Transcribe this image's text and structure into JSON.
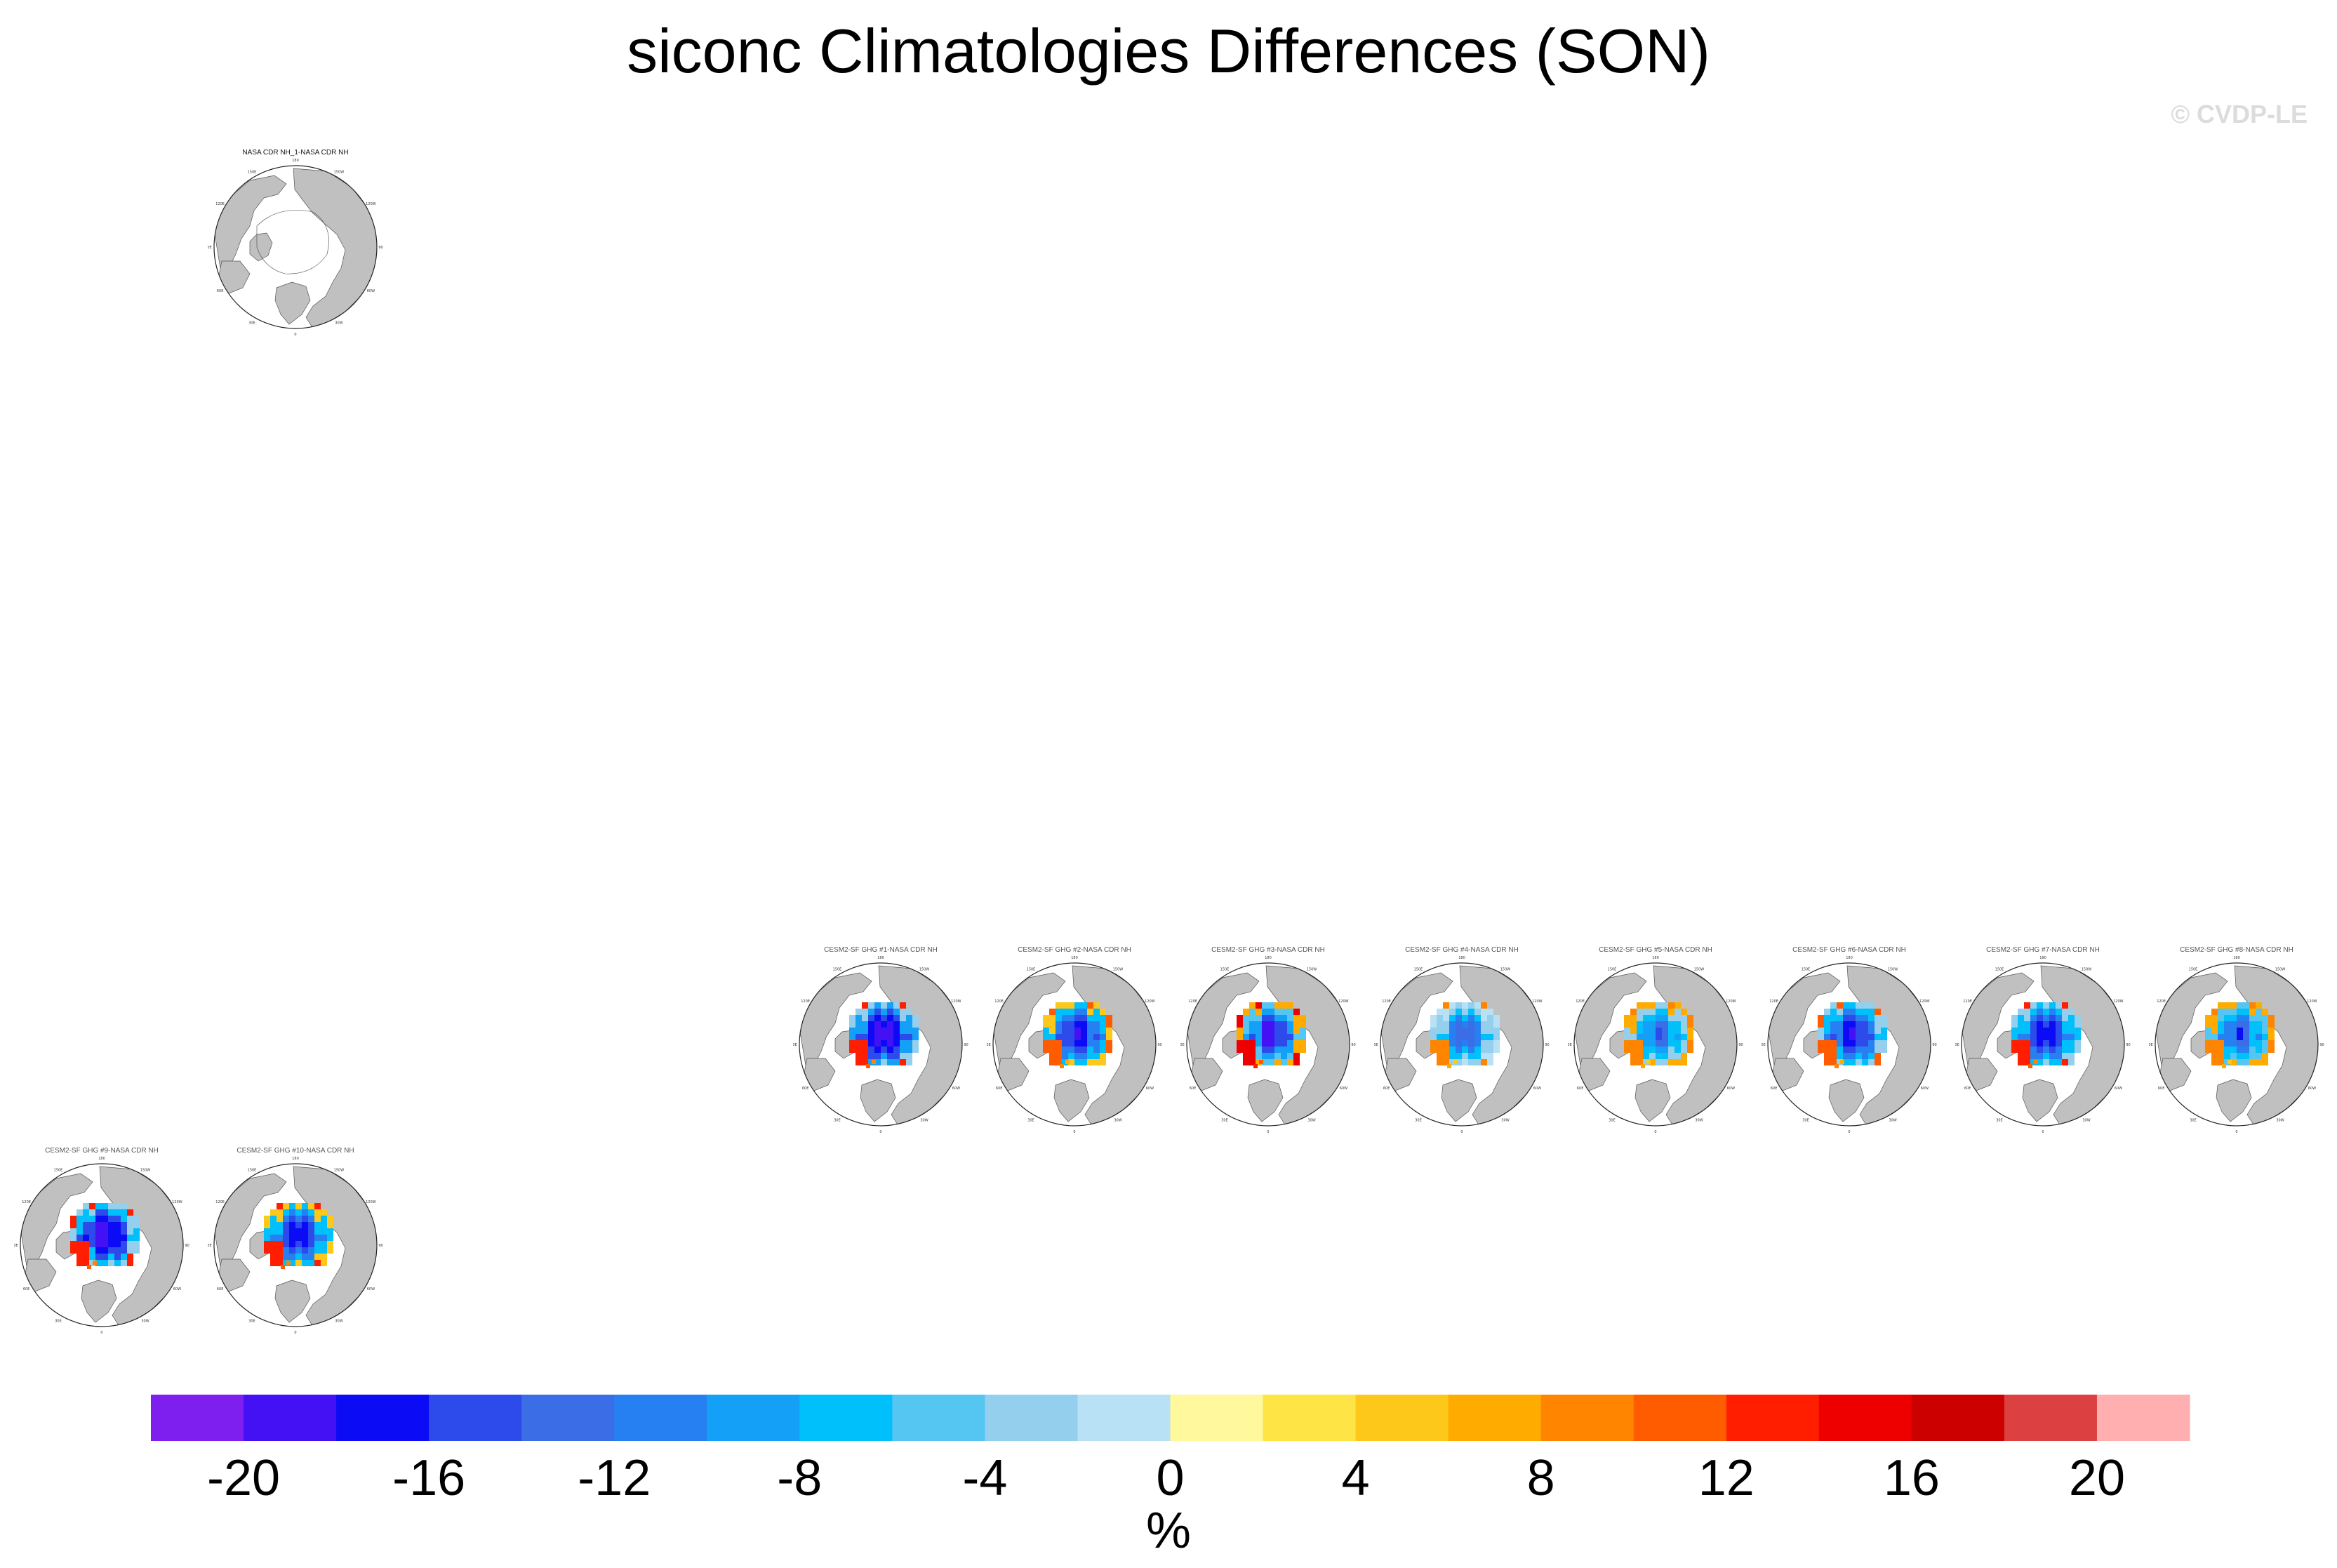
{
  "figure": {
    "title": "siconc Climatologies Differences (SON)",
    "watermark": "© CVDP-LE"
  },
  "chart_data": {
    "type": "heatmap",
    "title": "siconc Climatologies Differences (SON)",
    "map_projection": "north-polar-stereographic",
    "longitude_labels": [
      "180",
      "150E",
      "120E",
      "90E",
      "60E",
      "30E",
      "0",
      "30W",
      "60W",
      "90W",
      "120W",
      "150W"
    ],
    "land_color": "#c0c0c0",
    "ocean_color": "#ffffff",
    "panels": [
      {
        "title": "NASA CDR NH_1-NASA CDR NH",
        "kind": "observation",
        "anomaly": []
      },
      {
        "title": "CESM2-SF GHG #1-NASA CDR NH",
        "kind": "member",
        "anomaly": [
          -20,
          -20,
          -18,
          -16,
          -10,
          -4,
          12
        ]
      },
      {
        "title": "CESM2-SF GHG #2-NASA CDR NH",
        "kind": "member",
        "anomaly": [
          -20,
          -18,
          -16,
          -12,
          -8,
          4,
          10
        ]
      },
      {
        "title": "CESM2-SF GHG #3-NASA CDR NH",
        "kind": "member",
        "anomaly": [
          -20,
          -20,
          -16,
          -10,
          -6,
          6,
          14
        ]
      },
      {
        "title": "CESM2-SF GHG #4-NASA CDR NH",
        "kind": "member",
        "anomaly": [
          -18,
          -14,
          -12,
          -8,
          -4,
          -2,
          8
        ]
      },
      {
        "title": "CESM2-SF GHG #5-NASA CDR NH",
        "kind": "member",
        "anomaly": [
          -16,
          -14,
          -10,
          -8,
          -4,
          6,
          8
        ]
      },
      {
        "title": "CESM2-SF GHG #6-NASA CDR NH",
        "kind": "member",
        "anomaly": [
          -20,
          -18,
          -16,
          -12,
          -8,
          -4,
          10
        ]
      },
      {
        "title": "CESM2-SF GHG #7-NASA CDR NH",
        "kind": "member",
        "anomaly": [
          -20,
          -18,
          -16,
          -12,
          -8,
          -4,
          12
        ]
      },
      {
        "title": "CESM2-SF GHG #8-NASA CDR NH",
        "kind": "member",
        "anomaly": [
          -18,
          -14,
          -12,
          -8,
          -6,
          6,
          8
        ]
      },
      {
        "title": "CESM2-SF GHG #9-NASA CDR NH",
        "kind": "member",
        "anomaly": [
          -20,
          -20,
          -18,
          -16,
          -8,
          -4,
          12
        ]
      },
      {
        "title": "CESM2-SF GHG #10-NASA CDR NH",
        "kind": "member",
        "anomaly": [
          -20,
          -18,
          -16,
          -12,
          -8,
          4,
          12
        ]
      }
    ],
    "colorbar": {
      "label": "%",
      "levels": [
        -20,
        -18,
        -16,
        -14,
        -12,
        -10,
        -8,
        -6,
        -4,
        -2,
        0,
        2,
        4,
        6,
        8,
        10,
        12,
        14,
        16,
        18,
        20
      ],
      "tick_labels": [
        "-20",
        "-16",
        "-12",
        "-8",
        "-4",
        "0",
        "4",
        "8",
        "12",
        "16",
        "20"
      ],
      "colors": [
        "#7f1fef",
        "#4411f5",
        "#0b0bf5",
        "#2d4beb",
        "#3a6de6",
        "#2780f2",
        "#15a0f8",
        "#00c0fb",
        "#55c5f2",
        "#95cfee",
        "#b8e1f5",
        "#fff89c",
        "#ffe446",
        "#fdc81a",
        "#ffab00",
        "#ff8500",
        "#ff5c00",
        "#ff1f00",
        "#ee0000",
        "#cd0000",
        "#dc4040",
        "#ffafaf"
      ]
    }
  }
}
